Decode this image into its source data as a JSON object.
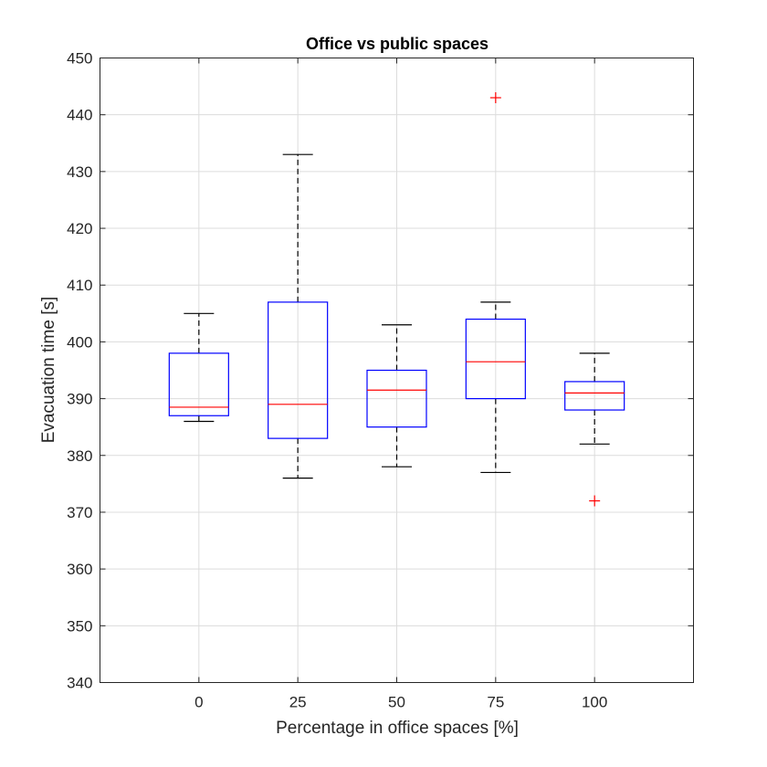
{
  "chart_data": {
    "type": "box",
    "title": "Office vs public spaces",
    "xlabel": "Percentage in office spaces [%]",
    "ylabel": "Evacuation time [s]",
    "categories": [
      "0",
      "25",
      "50",
      "75",
      "100"
    ],
    "ylim": [
      340,
      450
    ],
    "yticks": [
      340,
      350,
      360,
      370,
      380,
      390,
      400,
      410,
      420,
      430,
      440,
      450
    ],
    "grid": true,
    "boxes": [
      {
        "category": "0",
        "whisker_low": 386,
        "q1": 387,
        "median": 388.5,
        "q3": 398,
        "whisker_high": 405,
        "outliers": []
      },
      {
        "category": "25",
        "whisker_low": 376,
        "q1": 383,
        "median": 389,
        "q3": 407,
        "whisker_high": 433,
        "outliers": []
      },
      {
        "category": "50",
        "whisker_low": 378,
        "q1": 385,
        "median": 391.5,
        "q3": 395,
        "whisker_high": 403,
        "outliers": []
      },
      {
        "category": "75",
        "whisker_low": 377,
        "q1": 390,
        "median": 396.5,
        "q3": 404,
        "whisker_high": 407,
        "outliers": [
          443
        ]
      },
      {
        "category": "100",
        "whisker_low": 382,
        "q1": 388,
        "median": 391,
        "q3": 393,
        "whisker_high": 398,
        "outliers": [
          372
        ]
      }
    ],
    "colors": {
      "box": "#0000ff",
      "median": "#ff0000",
      "whisker": "#000000",
      "outlier": "#ff0000"
    }
  }
}
